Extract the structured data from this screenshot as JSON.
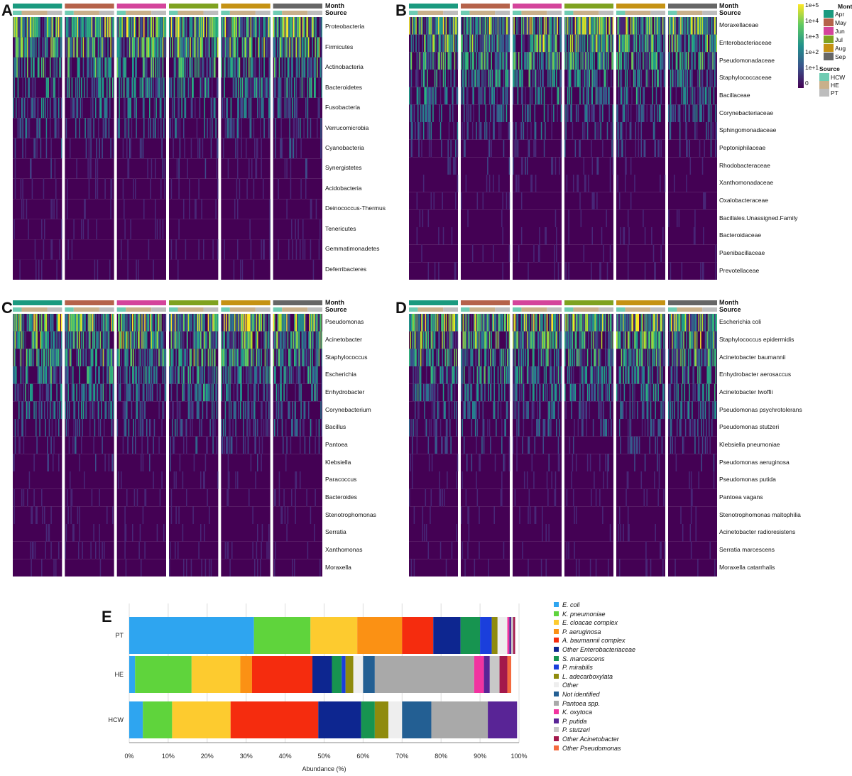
{
  "months": [
    {
      "name": "Apr",
      "color": "#1a9a7f"
    },
    {
      "name": "May",
      "color": "#b5624a"
    },
    {
      "name": "Jun",
      "color": "#d4449b"
    },
    {
      "name": "Jul",
      "color": "#7fa220"
    },
    {
      "name": "Aug",
      "color": "#c59213"
    },
    {
      "name": "Sep",
      "color": "#666666"
    }
  ],
  "sources": [
    {
      "name": "HCW",
      "color": "#6fccb3"
    },
    {
      "name": "HE",
      "color": "#c9b08b"
    },
    {
      "name": "PT",
      "color": "#bdbdbd"
    }
  ],
  "legend": {
    "scale_ticks": [
      "1e+5",
      "1e+4",
      "1e+3",
      "1e+2",
      "1e+1",
      "0"
    ],
    "month_title": "Month",
    "source_title": "Source"
  },
  "heatmap_labels": {
    "month": "Month",
    "source": "Source"
  },
  "chart_data": [
    {
      "type": "heatmap",
      "panel": "A",
      "row_labels": [
        "Proteobacteria",
        "Firmicutes",
        "Actinobacteria",
        "Bacteroidetes",
        "Fusobacteria",
        "Verrucomicrobia",
        "Cyanobacteria",
        "Synergistetes",
        "Acidobacteria",
        "Deinococcus-Thermus",
        "Tenericutes",
        "Gemmatimonadetes",
        "Deferribacteres"
      ],
      "column_groups": [
        "Apr",
        "May",
        "Jun",
        "Jul",
        "Aug",
        "Sep"
      ],
      "color_scale": "viridis (log, 0 to 1e+5)"
    },
    {
      "type": "heatmap",
      "panel": "B",
      "row_labels": [
        "Moraxellaceae",
        "Enterobacteriaceae",
        "Pseudomonadaceae",
        "Staphylococcaceae",
        "Bacillaceae",
        "Corynebacteriaceae",
        "Sphingomonadaceae",
        "Peptoniphilaceae",
        "Rhodobacteraceae",
        "Xanthomonadaceae",
        "Oxalobacteraceae",
        "Bacillales.Unassigned.Family",
        "Bacteroidaceae",
        "Paenibacillaceae",
        "Prevotellaceae"
      ],
      "column_groups": [
        "Apr",
        "May",
        "Jun",
        "Jul",
        "Aug",
        "Sep"
      ],
      "color_scale": "viridis (log, 0 to 1e+5)"
    },
    {
      "type": "heatmap",
      "panel": "C",
      "row_labels": [
        "Pseudomonas",
        "Acinetobacter",
        "Staphylococcus",
        "Escherichia",
        "Enhydrobacter",
        "Corynebacterium",
        "Bacillus",
        "Pantoea",
        "Klebsiella",
        "Paracoccus",
        "Bacteroides",
        "Stenotrophomonas",
        "Serratia",
        "Xanthomonas",
        "Moraxella"
      ],
      "column_groups": [
        "Apr",
        "May",
        "Jun",
        "Jul",
        "Aug",
        "Sep"
      ],
      "color_scale": "viridis (log, 0 to 1e+5)"
    },
    {
      "type": "heatmap",
      "panel": "D",
      "row_labels": [
        "Escherichia coli",
        "Staphylococcus epidermidis",
        "Acinetobacter baumannii",
        "Enhydrobacter aerosaccus",
        "Acinetobacter lwoffii",
        "Pseudomonas psychrotolerans",
        "Pseudomonas stutzeri",
        "Klebsiella pneumoniae",
        "Pseudomonas aeruginosa",
        "Pseudomonas putida",
        "Pantoea vagans",
        "Stenotrophomonas maltophilia",
        "Acinetobacter radioresistens",
        "Serratia marcescens",
        "Moraxella catarrhalis"
      ],
      "column_groups": [
        "Apr",
        "May",
        "Jun",
        "Jul",
        "Aug",
        "Sep"
      ],
      "color_scale": "viridis (log, 0 to 1e+5)"
    },
    {
      "type": "bar",
      "orientation": "horizontal-stacked",
      "panel": "E",
      "xlabel": "Abundance (%)",
      "xlim": [
        0,
        100
      ],
      "xticks": [
        "0%",
        "10%",
        "20%",
        "30%",
        "40%",
        "50%",
        "60%",
        "70%",
        "80%",
        "90%",
        "100%"
      ],
      "categories": [
        "PT",
        "HE",
        "HCW"
      ],
      "series": [
        {
          "name": "E. coli",
          "color": "#2ea5f0",
          "values": [
            32,
            1.5,
            3.5
          ]
        },
        {
          "name": "K. pneumoniae",
          "color": "#5fd43c",
          "values": [
            14.5,
            14.5,
            7.5
          ]
        },
        {
          "name": "E. cloacae complex",
          "color": "#fdcb2f",
          "values": [
            12,
            12.5,
            15
          ]
        },
        {
          "name": "P. aeruginosa",
          "color": "#fb9114",
          "values": [
            11.5,
            3,
            0
          ]
        },
        {
          "name": "A. baumannii complex",
          "color": "#f52c0e",
          "values": [
            8,
            15.5,
            22.5
          ]
        },
        {
          "name": "Other Enterobacteriaceae",
          "color": "#0d2690",
          "values": [
            7,
            5,
            11
          ]
        },
        {
          "name": "S. marcescens",
          "color": "#179450",
          "values": [
            5,
            2.5,
            3.5
          ]
        },
        {
          "name": "P. mirabilis",
          "color": "#1a3fdc",
          "values": [
            3,
            1,
            0
          ]
        },
        {
          "name": "L. adecarboxylata",
          "color": "#8f8b0d",
          "values": [
            1.5,
            2,
            3.5
          ]
        },
        {
          "name": "Other",
          "color": "#eeeeee",
          "values": [
            2.5,
            2.5,
            3.5
          ]
        },
        {
          "name": "Not identified",
          "color": "#235f93",
          "values": [
            0,
            3,
            7.5
          ]
        },
        {
          "name": "Pantoea spp.",
          "color": "#a9a9a9",
          "values": [
            0,
            25.5,
            14.5
          ]
        },
        {
          "name": "K. oxytoca",
          "color": "#f233a0",
          "values": [
            0.5,
            2.5,
            0
          ]
        },
        {
          "name": "P. putida",
          "color": "#592496",
          "values": [
            0.5,
            1.5,
            7.5
          ]
        },
        {
          "name": "P. stutzeri",
          "color": "#c8c8c8",
          "values": [
            0.5,
            2.5,
            0
          ]
        },
        {
          "name": "Other Acinetobacter",
          "color": "#a3184b",
          "values": [
            0.5,
            2,
            0
          ]
        },
        {
          "name": "Other Pseudomonas",
          "color": "#f46a3e",
          "values": [
            0,
            1,
            0
          ]
        }
      ]
    }
  ],
  "panel_letters": {
    "A": "A",
    "B": "B",
    "C": "C",
    "D": "D",
    "E": "E"
  }
}
